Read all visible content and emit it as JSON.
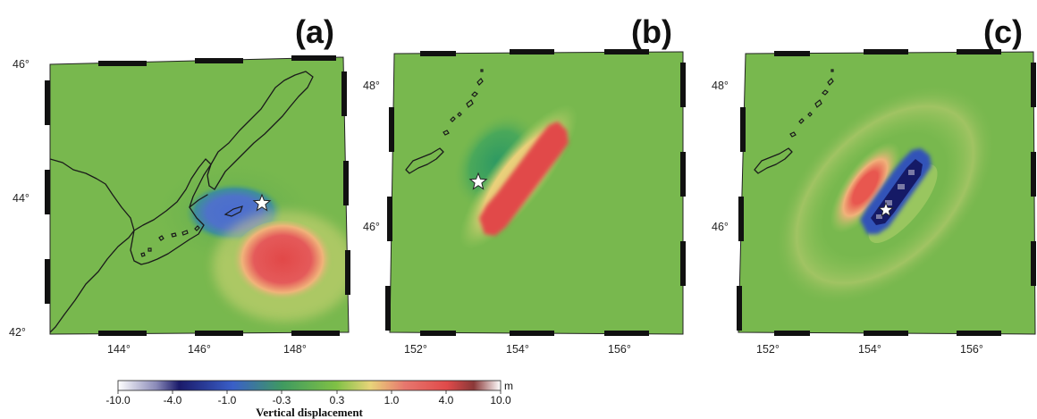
{
  "panels": [
    {
      "label": "(a)",
      "lat_labels": [
        "46°",
        "44°",
        "42°"
      ],
      "lon_labels": [
        "144°",
        "146°",
        "148°"
      ]
    },
    {
      "label": "(b)",
      "lat_labels": [
        "48°",
        "46°"
      ],
      "lon_labels": [
        "152°",
        "154°",
        "156°"
      ]
    },
    {
      "label": "(c)",
      "lat_labels": [
        "48°",
        "46°"
      ],
      "lon_labels": [
        "152°",
        "154°",
        "156°"
      ]
    }
  ],
  "colorbar": {
    "unit": "m",
    "title": "Vertical displacement",
    "tick_labels": [
      "-10.0",
      "-4.0",
      "-1.0",
      "-0.3",
      "0.3",
      "1.0",
      "4.0",
      "10.0"
    ],
    "stops": [
      "#ffffff",
      "#0b0b55",
      "#3a5fc8",
      "#4aa35a",
      "#7fc145",
      "#f0d27a",
      "#e7776e",
      "#e04a4a",
      "#ffffff"
    ]
  },
  "colors": {
    "background_green": "#78b84e",
    "uplift": "#e24b4b",
    "subsidence": "#4a68c6",
    "deep_subsidence": "#151a66",
    "epicenter_star": "#ffffff"
  }
}
